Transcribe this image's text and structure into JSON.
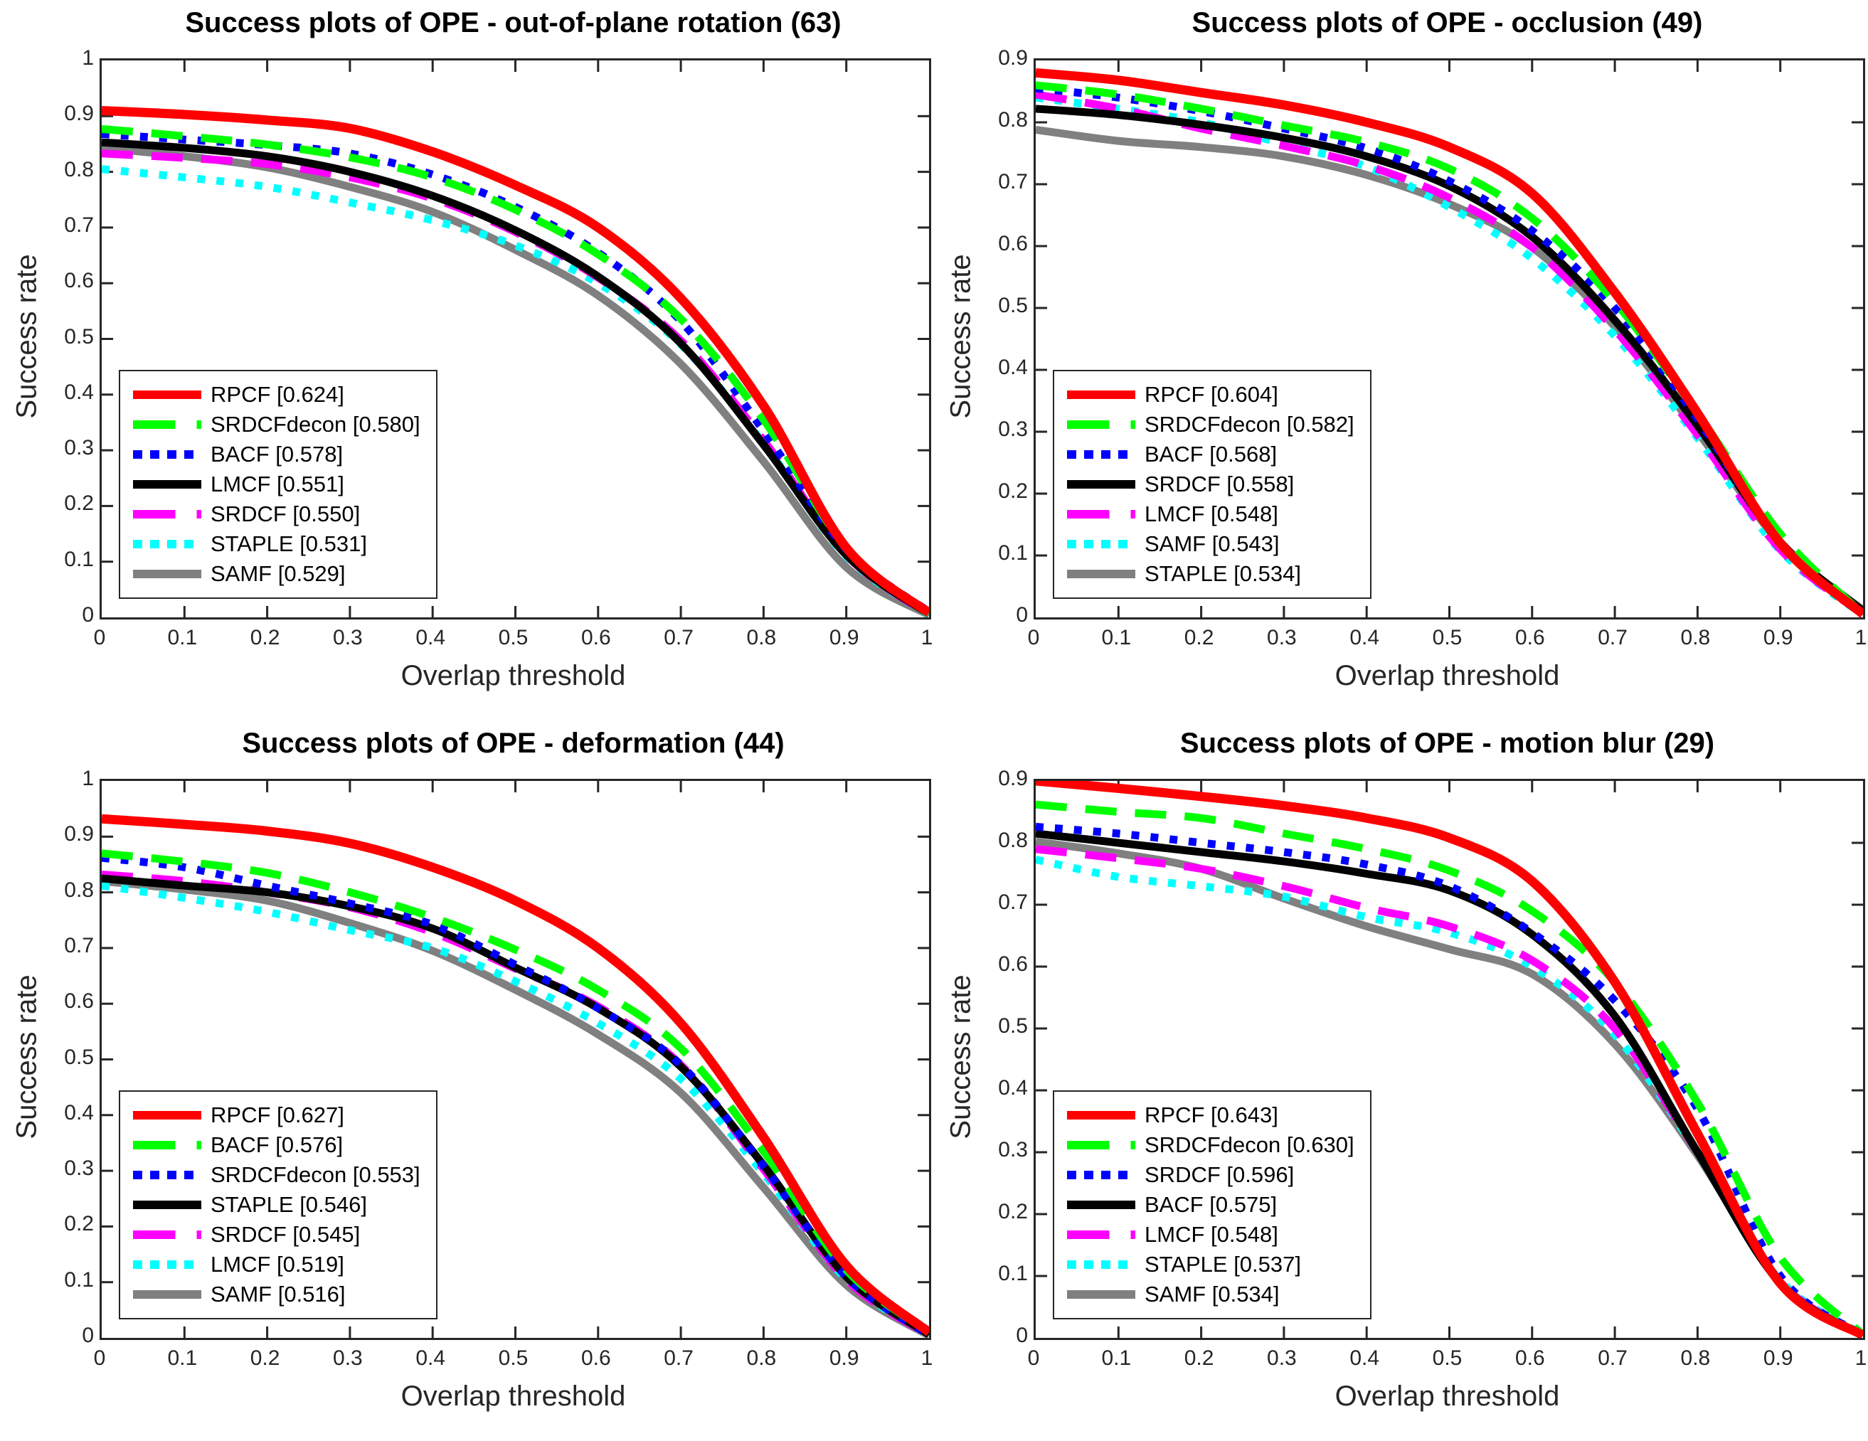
{
  "figure": {
    "background": "#ffffff",
    "axis_color": "#262626",
    "xlabel": "Overlap threshold",
    "ylabel": "Success rate"
  },
  "chart_data": [
    {
      "type": "line",
      "id": "out-of-plane-rotation",
      "title": "Success plots of OPE - out-of-plane rotation (63)",
      "subset": "out-of-plane rotation",
      "count": 63,
      "xlabel": "Overlap threshold",
      "ylabel": "Success rate",
      "xlim": [
        0,
        1
      ],
      "ylim": [
        0,
        1
      ],
      "grid": false,
      "legend_position": "lower-left",
      "x_ticks": [
        "0",
        "0.1",
        "0.2",
        "0.3",
        "0.4",
        "0.5",
        "0.6",
        "0.7",
        "0.8",
        "0.9",
        "1"
      ],
      "y_ticks": [
        "0",
        "0.1",
        "0.2",
        "0.3",
        "0.4",
        "0.5",
        "0.6",
        "0.7",
        "0.8",
        "0.9",
        "1"
      ],
      "x": [
        0,
        0.1,
        0.2,
        0.3,
        0.4,
        0.5,
        0.6,
        0.7,
        0.8,
        0.9,
        1.0
      ],
      "series": [
        {
          "name": "RPCF",
          "score": "0.624",
          "label": "RPCF [0.624]",
          "color": "#ff0000",
          "style": "solid",
          "values": [
            0.91,
            0.903,
            0.893,
            0.878,
            0.836,
            0.776,
            0.7,
            0.573,
            0.38,
            0.125,
            0.008
          ]
        },
        {
          "name": "SRDCFdecon",
          "score": "0.580",
          "label": "SRDCFdecon [0.580]",
          "color": "#00ff00",
          "style": "dashed",
          "values": [
            0.877,
            0.864,
            0.849,
            0.826,
            0.79,
            0.732,
            0.652,
            0.536,
            0.355,
            0.125,
            0.006
          ]
        },
        {
          "name": "BACF",
          "score": "0.578",
          "label": "BACF [0.578]",
          "color": "#0000ff",
          "style": "dotted",
          "values": [
            0.868,
            0.858,
            0.848,
            0.833,
            0.795,
            0.737,
            0.655,
            0.532,
            0.335,
            0.122,
            0.01
          ]
        },
        {
          "name": "LMCF",
          "score": "0.551",
          "label": "LMCF [0.551]",
          "color": "#000000",
          "style": "solid",
          "values": [
            0.853,
            0.843,
            0.828,
            0.8,
            0.757,
            0.695,
            0.612,
            0.492,
            0.31,
            0.112,
            0.006
          ]
        },
        {
          "name": "SRDCF",
          "score": "0.550",
          "label": "SRDCF [0.550]",
          "color": "#ff00ff",
          "style": "dashed",
          "values": [
            0.833,
            0.825,
            0.814,
            0.79,
            0.752,
            0.692,
            0.61,
            0.497,
            0.318,
            0.112,
            0.005
          ]
        },
        {
          "name": "STAPLE",
          "score": "0.531",
          "label": "STAPLE [0.531]",
          "color": "#00ffff",
          "style": "dotted",
          "values": [
            0.805,
            0.79,
            0.773,
            0.745,
            0.713,
            0.668,
            0.6,
            0.49,
            0.312,
            0.11,
            0.005
          ]
        },
        {
          "name": "SAMF",
          "score": "0.529",
          "label": "SAMF [0.529]",
          "color": "#808080",
          "style": "solid",
          "values": [
            0.843,
            0.828,
            0.808,
            0.773,
            0.728,
            0.66,
            0.578,
            0.455,
            0.28,
            0.09,
            0.004
          ]
        }
      ]
    },
    {
      "type": "line",
      "id": "occlusion",
      "title": "Success plots of OPE - occlusion (49)",
      "subset": "occlusion",
      "count": 49,
      "xlabel": "Overlap threshold",
      "ylabel": "Success rate",
      "xlim": [
        0,
        1
      ],
      "ylim": [
        0,
        0.9
      ],
      "grid": false,
      "legend_position": "lower-left",
      "x_ticks": [
        "0",
        "0.1",
        "0.2",
        "0.3",
        "0.4",
        "0.5",
        "0.6",
        "0.7",
        "0.8",
        "0.9",
        "1"
      ],
      "y_ticks": [
        "0",
        "0.1",
        "0.2",
        "0.3",
        "0.4",
        "0.5",
        "0.6",
        "0.7",
        "0.8",
        "0.9"
      ],
      "x": [
        0,
        0.1,
        0.2,
        0.3,
        0.4,
        0.5,
        0.6,
        0.7,
        0.8,
        0.9,
        1.0
      ],
      "series": [
        {
          "name": "RPCF",
          "score": "0.604",
          "label": "RPCF [0.604]",
          "color": "#ff0000",
          "style": "solid",
          "values": [
            0.88,
            0.868,
            0.848,
            0.828,
            0.8,
            0.76,
            0.685,
            0.525,
            0.33,
            0.12,
            0.005
          ]
        },
        {
          "name": "SRDCFdecon",
          "score": "0.582",
          "label": "SRDCFdecon [0.582]",
          "color": "#00ff00",
          "style": "dashed",
          "values": [
            0.86,
            0.845,
            0.822,
            0.795,
            0.768,
            0.725,
            0.645,
            0.51,
            0.33,
            0.135,
            0.005
          ]
        },
        {
          "name": "BACF",
          "score": "0.568",
          "label": "BACF [0.568]",
          "color": "#0000ff",
          "style": "dotted",
          "values": [
            0.855,
            0.84,
            0.818,
            0.79,
            0.758,
            0.705,
            0.625,
            0.5,
            0.32,
            0.12,
            0.004
          ]
        },
        {
          "name": "SRDCF",
          "score": "0.558",
          "label": "SRDCF [0.558]",
          "color": "#000000",
          "style": "solid",
          "values": [
            0.822,
            0.812,
            0.796,
            0.775,
            0.745,
            0.697,
            0.615,
            0.48,
            0.31,
            0.122,
            0.01
          ]
        },
        {
          "name": "LMCF",
          "score": "0.548",
          "label": "LMCF [0.548]",
          "color": "#ff00ff",
          "style": "dashed",
          "values": [
            0.845,
            0.822,
            0.79,
            0.762,
            0.73,
            0.678,
            0.598,
            0.465,
            0.295,
            0.11,
            0.005
          ]
        },
        {
          "name": "SAMF",
          "score": "0.543",
          "label": "SAMF [0.543]",
          "color": "#00ffff",
          "style": "dotted",
          "values": [
            0.84,
            0.822,
            0.8,
            0.765,
            0.728,
            0.663,
            0.58,
            0.455,
            0.29,
            0.108,
            0.004
          ]
        },
        {
          "name": "STAPLE",
          "score": "0.534",
          "label": "STAPLE [0.534]",
          "color": "#808080",
          "style": "solid",
          "values": [
            0.788,
            0.77,
            0.76,
            0.745,
            0.715,
            0.668,
            0.598,
            0.47,
            0.3,
            0.12,
            0.012
          ]
        }
      ]
    },
    {
      "type": "line",
      "id": "deformation",
      "title": "Success plots of OPE - deformation (44)",
      "subset": "deformation",
      "count": 44,
      "xlabel": "Overlap threshold",
      "ylabel": "Success rate",
      "xlim": [
        0,
        1
      ],
      "ylim": [
        0,
        1
      ],
      "grid": false,
      "legend_position": "lower-left",
      "x_ticks": [
        "0",
        "0.1",
        "0.2",
        "0.3",
        "0.4",
        "0.5",
        "0.6",
        "0.7",
        "0.8",
        "0.9",
        "1"
      ],
      "y_ticks": [
        "0",
        "0.1",
        "0.2",
        "0.3",
        "0.4",
        "0.5",
        "0.6",
        "0.7",
        "0.8",
        "0.9",
        "1"
      ],
      "x": [
        0,
        0.1,
        0.2,
        0.3,
        0.4,
        0.5,
        0.6,
        0.7,
        0.8,
        0.9,
        1.0
      ],
      "series": [
        {
          "name": "RPCF",
          "score": "0.627",
          "label": "RPCF [0.627]",
          "color": "#ff0000",
          "style": "solid",
          "values": [
            0.932,
            0.922,
            0.91,
            0.888,
            0.845,
            0.785,
            0.7,
            0.565,
            0.36,
            0.13,
            0.01
          ]
        },
        {
          "name": "BACF",
          "score": "0.576",
          "label": "BACF [0.576]",
          "color": "#00ff00",
          "style": "dashed",
          "values": [
            0.87,
            0.855,
            0.835,
            0.8,
            0.755,
            0.697,
            0.625,
            0.52,
            0.335,
            0.122,
            0.01
          ]
        },
        {
          "name": "SRDCFdecon",
          "score": "0.553",
          "label": "SRDCFdecon [0.553]",
          "color": "#0000ff",
          "style": "dotted",
          "values": [
            0.862,
            0.845,
            0.812,
            0.78,
            0.742,
            0.67,
            0.592,
            0.49,
            0.308,
            0.11,
            0.005
          ]
        },
        {
          "name": "STAPLE",
          "score": "0.546",
          "label": "STAPLE [0.546]",
          "color": "#000000",
          "style": "solid",
          "values": [
            0.825,
            0.812,
            0.8,
            0.775,
            0.735,
            0.665,
            0.592,
            0.487,
            0.31,
            0.11,
            0.006
          ]
        },
        {
          "name": "SRDCF",
          "score": "0.545",
          "label": "SRDCF [0.545]",
          "color": "#ff00ff",
          "style": "dashed",
          "values": [
            0.832,
            0.82,
            0.8,
            0.773,
            0.728,
            0.663,
            0.595,
            0.49,
            0.303,
            0.105,
            0.005
          ]
        },
        {
          "name": "LMCF",
          "score": "0.519",
          "label": "LMCF [0.519]",
          "color": "#00ffff",
          "style": "dotted",
          "values": [
            0.812,
            0.79,
            0.765,
            0.732,
            0.7,
            0.64,
            0.565,
            0.465,
            0.295,
            0.105,
            0.005
          ]
        },
        {
          "name": "SAMF",
          "score": "0.516",
          "label": "SAMF [0.516]",
          "color": "#808080",
          "style": "solid",
          "values": [
            0.82,
            0.805,
            0.785,
            0.745,
            0.695,
            0.625,
            0.545,
            0.44,
            0.27,
            0.095,
            0.004
          ]
        }
      ]
    },
    {
      "type": "line",
      "id": "motion-blur",
      "title": "Success plots of OPE - motion blur (29)",
      "subset": "motion blur",
      "count": 29,
      "xlabel": "Overlap threshold",
      "ylabel": "Success rate",
      "xlim": [
        0,
        1
      ],
      "ylim": [
        0,
        0.9
      ],
      "grid": false,
      "legend_position": "lower-left",
      "x_ticks": [
        "0",
        "0.1",
        "0.2",
        "0.3",
        "0.4",
        "0.5",
        "0.6",
        "0.7",
        "0.8",
        "0.9",
        "1"
      ],
      "y_ticks": [
        "0",
        "0.1",
        "0.2",
        "0.3",
        "0.4",
        "0.5",
        "0.6",
        "0.7",
        "0.8",
        "0.9"
      ],
      "x": [
        0,
        0.1,
        0.2,
        0.3,
        0.4,
        0.5,
        0.6,
        0.7,
        0.8,
        0.9,
        1.0
      ],
      "series": [
        {
          "name": "RPCF",
          "score": "0.643",
          "label": "RPCF [0.643]",
          "color": "#ff0000",
          "style": "solid",
          "values": [
            0.9,
            0.888,
            0.875,
            0.86,
            0.84,
            0.808,
            0.738,
            0.575,
            0.33,
            0.088,
            0.004
          ]
        },
        {
          "name": "SRDCFdecon",
          "score": "0.630",
          "label": "SRDCFdecon [0.630]",
          "color": "#00ff00",
          "style": "dashed",
          "values": [
            0.862,
            0.85,
            0.84,
            0.815,
            0.79,
            0.755,
            0.69,
            0.575,
            0.38,
            0.13,
            0.005
          ]
        },
        {
          "name": "SRDCF",
          "score": "0.596",
          "label": "SRDCF [0.596]",
          "color": "#0000ff",
          "style": "dotted",
          "values": [
            0.826,
            0.815,
            0.8,
            0.785,
            0.765,
            0.73,
            0.655,
            0.545,
            0.37,
            0.1,
            0.005
          ]
        },
        {
          "name": "BACF",
          "score": "0.575",
          "label": "BACF [0.575]",
          "color": "#000000",
          "style": "solid",
          "values": [
            0.815,
            0.8,
            0.785,
            0.77,
            0.75,
            0.723,
            0.652,
            0.52,
            0.3,
            0.088,
            0.004
          ]
        },
        {
          "name": "LMCF",
          "score": "0.548",
          "label": "LMCF [0.548]",
          "color": "#ff00ff",
          "style": "dashed",
          "values": [
            0.79,
            0.775,
            0.758,
            0.73,
            0.695,
            0.665,
            0.61,
            0.5,
            0.3,
            0.09,
            0.004
          ]
        },
        {
          "name": "STAPLE",
          "score": "0.537",
          "label": "STAPLE [0.537]",
          "color": "#00ffff",
          "style": "dotted",
          "values": [
            0.773,
            0.745,
            0.73,
            0.713,
            0.68,
            0.655,
            0.6,
            0.49,
            0.3,
            0.093,
            0.005
          ]
        },
        {
          "name": "SAMF",
          "score": "0.534",
          "label": "SAMF [0.534]",
          "color": "#808080",
          "style": "solid",
          "values": [
            0.802,
            0.783,
            0.758,
            0.71,
            0.665,
            0.628,
            0.588,
            0.475,
            0.295,
            0.09,
            0.004
          ]
        }
      ]
    }
  ]
}
